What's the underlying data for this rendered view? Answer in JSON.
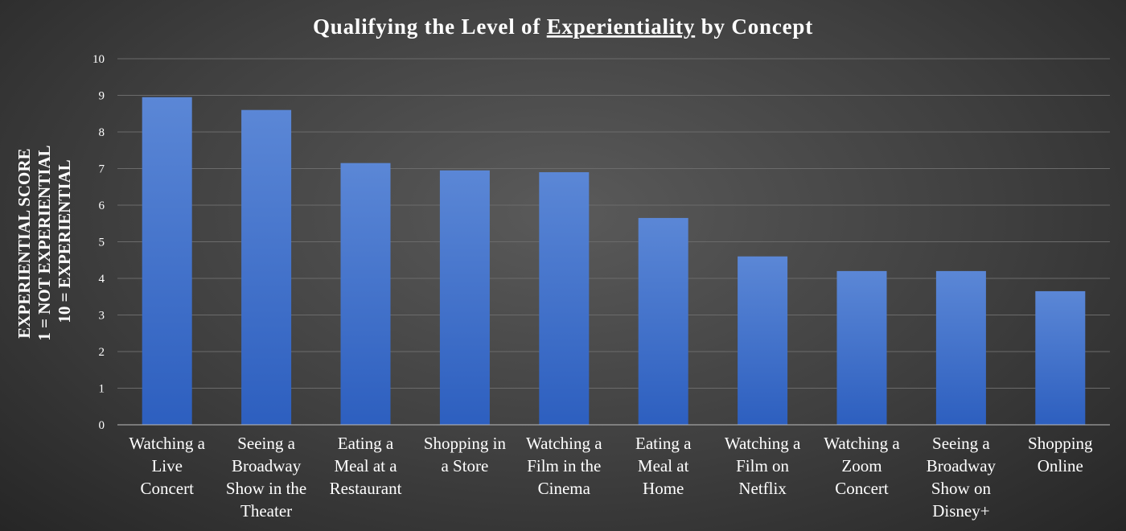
{
  "chart_data": {
    "type": "bar",
    "title_parts": [
      "Qualifying the Level of ",
      "Experientiality",
      " by Concept"
    ],
    "ylabel_lines": [
      "EXPERIENTIAL SCORE",
      "1 = NOT EXPERIENTIAL",
      "10 = EXPERIENTIAL"
    ],
    "ylim": [
      0,
      10
    ],
    "yticks": [
      "0",
      "1",
      "2",
      "3",
      "4",
      "5",
      "6",
      "7",
      "8",
      "9",
      "10"
    ],
    "grid": true,
    "categories": [
      [
        "Watching a",
        "Live",
        "Concert"
      ],
      [
        "Seeing a",
        "Broadway",
        "Show in the",
        "Theater"
      ],
      [
        "Eating a",
        "Meal at a",
        "Restaurant"
      ],
      [
        "Shopping in",
        "a Store"
      ],
      [
        "Watching a",
        "Film in the",
        "Cinema"
      ],
      [
        "Eating a",
        "Meal at",
        "Home"
      ],
      [
        "Watching a",
        "Film on",
        "Netflix"
      ],
      [
        "Watching a",
        "Zoom",
        "Concert"
      ],
      [
        "Seeing a",
        "Broadway",
        "Show on",
        "Disney+"
      ],
      [
        "Shopping",
        "Online"
      ]
    ],
    "values": [
      8.95,
      8.6,
      7.15,
      6.95,
      6.9,
      5.65,
      4.6,
      4.2,
      4.2,
      3.65
    ],
    "bar_color_top": "#5b87d6",
    "bar_color_bottom": "#2d5fbf"
  }
}
